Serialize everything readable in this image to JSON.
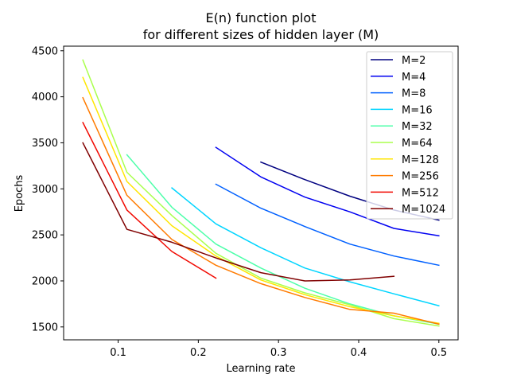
{
  "chart_data": {
    "type": "line",
    "title": [
      "E(n) function plot",
      "for different sizes of hidden layer (M)"
    ],
    "xlabel": "Learning rate",
    "ylabel": "Epochs",
    "xlim": [
      0.032,
      0.524
    ],
    "ylim": [
      1360,
      4550
    ],
    "xticks": [
      0.1,
      0.2,
      0.3,
      0.4,
      0.5
    ],
    "xtick_labels": [
      "0.1",
      "0.2",
      "0.3",
      "0.4",
      "0.5"
    ],
    "yticks": [
      1500,
      2000,
      2500,
      3000,
      3500,
      4000,
      4500
    ],
    "ytick_labels": [
      "1500",
      "2000",
      "2500",
      "3000",
      "3500",
      "4000",
      "4500"
    ],
    "grid": false,
    "legend_position": "upper right",
    "series": [
      {
        "name": "M=2",
        "color": "#000080",
        "x": [
          0.278,
          0.333,
          0.389,
          0.444,
          0.5
        ],
        "y": [
          3290,
          3100,
          2920,
          2770,
          2660
        ]
      },
      {
        "name": "M=4",
        "color": "#0000f1",
        "x": [
          0.222,
          0.278,
          0.333,
          0.389,
          0.444,
          0.5
        ],
        "y": [
          3450,
          3130,
          2910,
          2750,
          2570,
          2490
        ]
      },
      {
        "name": "M=8",
        "color": "#0060ff",
        "x": [
          0.222,
          0.278,
          0.333,
          0.389,
          0.444,
          0.5
        ],
        "y": [
          3050,
          2790,
          2590,
          2400,
          2270,
          2170
        ]
      },
      {
        "name": "M=16",
        "color": "#00d5ff",
        "x": [
          0.167,
          0.222,
          0.278,
          0.333,
          0.389,
          0.444,
          0.5
        ],
        "y": [
          3010,
          2620,
          2360,
          2140,
          1990,
          1860,
          1730
        ]
      },
      {
        "name": "M=32",
        "color": "#4dffaa",
        "x": [
          0.111,
          0.167,
          0.222,
          0.278,
          0.333,
          0.389,
          0.444,
          0.5
        ],
        "y": [
          3370,
          2800,
          2400,
          2140,
          1920,
          1750,
          1620,
          1530
        ]
      },
      {
        "name": "M=64",
        "color": "#aaff4d",
        "x": [
          0.056,
          0.111,
          0.167,
          0.222,
          0.278,
          0.333,
          0.389,
          0.444,
          0.5
        ],
        "y": [
          4400,
          3180,
          2710,
          2300,
          2030,
          1870,
          1740,
          1590,
          1510
        ]
      },
      {
        "name": "M=128",
        "color": "#ffe600",
        "x": [
          0.056,
          0.111,
          0.167,
          0.222,
          0.278,
          0.333,
          0.389,
          0.444,
          0.5
        ],
        "y": [
          4210,
          3080,
          2600,
          2270,
          2010,
          1850,
          1720,
          1620,
          1540
        ]
      },
      {
        "name": "M=256",
        "color": "#ff7b00",
        "x": [
          0.056,
          0.111,
          0.167,
          0.222,
          0.278,
          0.333,
          0.389,
          0.444,
          0.5
        ],
        "y": [
          3990,
          2930,
          2450,
          2170,
          1970,
          1820,
          1690,
          1650,
          1530
        ]
      },
      {
        "name": "M=512",
        "color": "#f10800",
        "x": [
          0.056,
          0.111,
          0.167,
          0.222
        ],
        "y": [
          3720,
          2770,
          2320,
          2030
        ]
      },
      {
        "name": "M=1024",
        "color": "#800000",
        "x": [
          0.056,
          0.111,
          0.167,
          0.222,
          0.278,
          0.333,
          0.389,
          0.444
        ],
        "y": [
          3500,
          2560,
          2420,
          2250,
          2090,
          2000,
          2010,
          2050
        ]
      }
    ]
  }
}
